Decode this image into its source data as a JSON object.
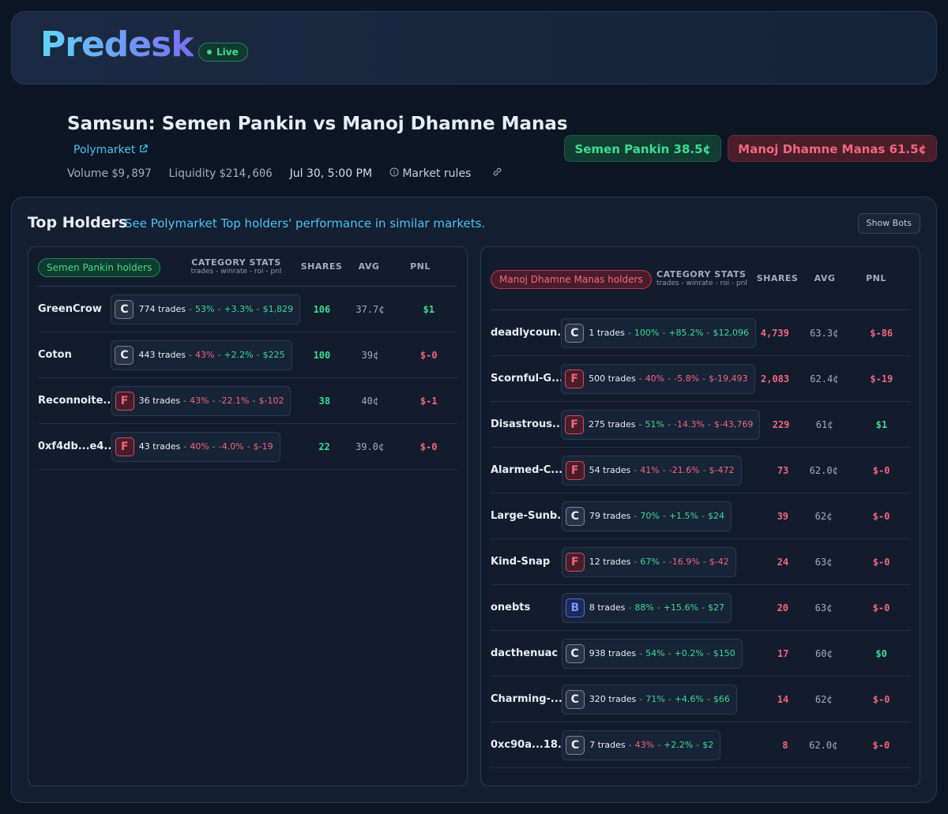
{
  "header": {
    "brand": "Predesk",
    "status": "Live"
  },
  "market": {
    "title": "Samsun: Semen Pankin vs Manoj Dhamne Manas",
    "source": "Polymarket",
    "volume_label": "Volume",
    "volume": "$9,897",
    "liquidity_label": "Liquidity",
    "liquidity": "$214,606",
    "date": "Jul 30, 5:00 PM",
    "rules": "Market rules",
    "outcomes": [
      {
        "name": "Semen Pankin",
        "price": "38.5¢",
        "color": "green"
      },
      {
        "name": "Manoj Dhamne Manas",
        "price": "61.5¢",
        "color": "red"
      }
    ]
  },
  "holders": {
    "title": "Top Holders",
    "link": "See Polymarket Top holders' performance in similar markets.",
    "button": "Show Bots",
    "separator": "-",
    "columns": {
      "category": "CATEGORY STATS",
      "category_sub": "trades - winrate - roi - pnl",
      "shares": "SHARES",
      "avg": "AVG",
      "pnl": "PNL"
    },
    "panels": [
      {
        "label": "Semen Pankin holders",
        "color": "green",
        "rows": [
          {
            "name": "GreenCrow",
            "badge": "C",
            "trades": "774 trades",
            "winrate": "53%",
            "roi": "+3.3%",
            "stat_pnl": "$1,829",
            "shares": "106",
            "avg": "37.7¢",
            "pnl": "$1"
          },
          {
            "name": "Coton",
            "badge": "C",
            "trades": "443 trades",
            "winrate": "43%",
            "roi": "+2.2%",
            "stat_pnl": "$225",
            "shares": "100",
            "avg": "39¢",
            "pnl": "$-0"
          },
          {
            "name": "Reconnoite...",
            "badge": "F",
            "trades": "36 trades",
            "winrate": "43%",
            "roi": "-22.1%",
            "stat_pnl": "$-102",
            "shares": "38",
            "avg": "40¢",
            "pnl": "$-1"
          },
          {
            "name": "0xf4db...e4...",
            "badge": "F",
            "trades": "43 trades",
            "winrate": "40%",
            "roi": "-4.0%",
            "stat_pnl": "$-19",
            "shares": "22",
            "avg": "39.0¢",
            "pnl": "$-0"
          }
        ]
      },
      {
        "label": "Manoj Dhamne Manas holders",
        "color": "red",
        "rows": [
          {
            "name": "deadlycoun...",
            "badge": "C",
            "trades": "1 trades",
            "winrate": "100%",
            "roi": "+85.2%",
            "stat_pnl": "$12,096",
            "shares": "4,739",
            "avg": "63.3¢",
            "pnl": "$-86"
          },
          {
            "name": "Scornful-G...",
            "badge": "F",
            "trades": "500 trades",
            "winrate": "40%",
            "roi": "-5.8%",
            "stat_pnl": "$-19,493",
            "shares": "2,083",
            "avg": "62.4¢",
            "pnl": "$-19"
          },
          {
            "name": "Disastrous...",
            "badge": "F",
            "trades": "275 trades",
            "winrate": "51%",
            "roi": "-14.3%",
            "stat_pnl": "$-43,769",
            "shares": "229",
            "avg": "61¢",
            "pnl": "$1"
          },
          {
            "name": "Alarmed-C...",
            "badge": "F",
            "trades": "54 trades",
            "winrate": "41%",
            "roi": "-21.6%",
            "stat_pnl": "$-472",
            "shares": "73",
            "avg": "62.0¢",
            "pnl": "$-0"
          },
          {
            "name": "Large-Sunb...",
            "badge": "C",
            "trades": "79 trades",
            "winrate": "70%",
            "roi": "+1.5%",
            "stat_pnl": "$24",
            "shares": "39",
            "avg": "62¢",
            "pnl": "$-0"
          },
          {
            "name": "Kind-Snap",
            "badge": "F",
            "trades": "12 trades",
            "winrate": "67%",
            "roi": "-16.9%",
            "stat_pnl": "$-42",
            "shares": "24",
            "avg": "63¢",
            "pnl": "$-0"
          },
          {
            "name": "onebts",
            "badge": "B",
            "trades": "8 trades",
            "winrate": "88%",
            "roi": "+15.6%",
            "stat_pnl": "$27",
            "shares": "20",
            "avg": "63¢",
            "pnl": "$-0"
          },
          {
            "name": "dacthenuac",
            "badge": "C",
            "trades": "938 trades",
            "winrate": "54%",
            "roi": "+0.2%",
            "stat_pnl": "$150",
            "shares": "17",
            "avg": "60¢",
            "pnl": "$0"
          },
          {
            "name": "Charming-...",
            "badge": "C",
            "trades": "320 trades",
            "winrate": "71%",
            "roi": "+4.6%",
            "stat_pnl": "$66",
            "shares": "14",
            "avg": "62¢",
            "pnl": "$-0"
          },
          {
            "name": "0xc90a...18...",
            "badge": "C",
            "trades": "7 trades",
            "winrate": "43%",
            "roi": "+2.2%",
            "stat_pnl": "$2",
            "shares": "8",
            "avg": "62.0¢",
            "pnl": "$-0"
          }
        ]
      }
    ]
  }
}
